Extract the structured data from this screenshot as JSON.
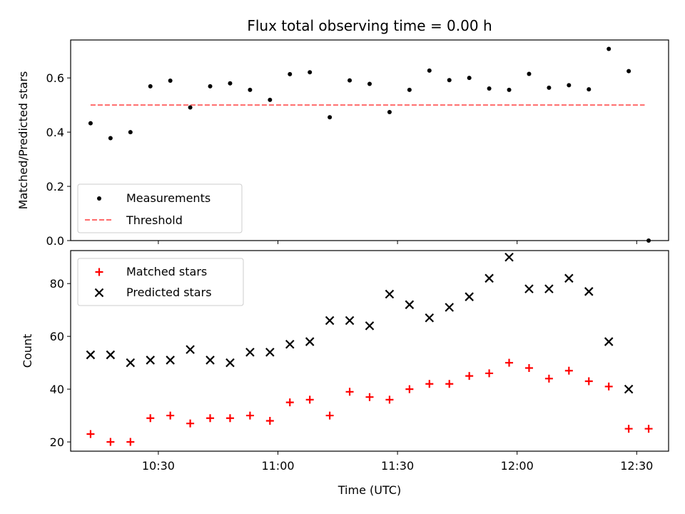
{
  "title": "Flux total observing time = 0.00 h",
  "colors": {
    "measurement": "#000000",
    "threshold": "#ff6b6b",
    "matched": "#ff0000",
    "predicted": "#000000"
  },
  "chart_data": [
    {
      "type": "scatter",
      "ylabel": "Matched/Predicted stars",
      "ylim": [
        0,
        0.74
      ],
      "yticks": [
        "0.0",
        "0.2",
        "0.4",
        "0.6"
      ],
      "xlim": [
        "10:08",
        "12:38"
      ],
      "legend": {
        "position": "lower-left",
        "entries": [
          "Measurements",
          "Threshold"
        ]
      },
      "series": [
        {
          "name": "Measurements",
          "x": [
            "10:13",
            "10:18",
            "10:23",
            "10:28",
            "10:33",
            "10:38",
            "10:43",
            "10:48",
            "10:53",
            "10:58",
            "11:03",
            "11:08",
            "11:13",
            "11:18",
            "11:23",
            "11:28",
            "11:33",
            "11:38",
            "11:43",
            "11:48",
            "11:53",
            "11:58",
            "12:03",
            "12:08",
            "12:13",
            "12:18",
            "12:23",
            "12:28",
            "12:33"
          ],
          "y": [
            0.433,
            0.378,
            0.4,
            0.569,
            0.59,
            0.491,
            0.569,
            0.58,
            0.556,
            0.519,
            0.614,
            0.621,
            0.455,
            0.591,
            0.578,
            0.474,
            0.556,
            0.627,
            0.592,
            0.6,
            0.561,
            0.556,
            0.615,
            0.564,
            0.573,
            0.558,
            0.707,
            0.625,
            0.0
          ]
        },
        {
          "name": "Threshold",
          "x": [
            "10:13",
            "12:32"
          ],
          "y": [
            0.5,
            0.5
          ]
        }
      ]
    },
    {
      "type": "scatter",
      "ylabel": "Count",
      "xlabel": "Time (UTC)",
      "ylim": [
        16.5,
        92.5
      ],
      "yticks": [
        "20",
        "40",
        "60",
        "80"
      ],
      "xticks": [
        "10:30",
        "11:00",
        "11:30",
        "12:00",
        "12:30"
      ],
      "xlim": [
        "10:08",
        "12:38"
      ],
      "legend": {
        "position": "upper-left",
        "entries": [
          "Matched stars",
          "Predicted stars"
        ]
      },
      "series": [
        {
          "name": "Matched stars",
          "x": [
            "10:13",
            "10:18",
            "10:23",
            "10:28",
            "10:33",
            "10:38",
            "10:43",
            "10:48",
            "10:53",
            "10:58",
            "11:03",
            "11:08",
            "11:13",
            "11:18",
            "11:23",
            "11:28",
            "11:33",
            "11:38",
            "11:43",
            "11:48",
            "11:53",
            "11:58",
            "12:03",
            "12:08",
            "12:13",
            "12:18",
            "12:23",
            "12:28",
            "12:33"
          ],
          "y": [
            23,
            20,
            20,
            29,
            30,
            27,
            29,
            29,
            30,
            28,
            35,
            36,
            30,
            39,
            37,
            36,
            40,
            42,
            42,
            45,
            46,
            50,
            48,
            44,
            47,
            43,
            41,
            25,
            25
          ]
        },
        {
          "name": "Predicted stars",
          "x": [
            "10:13",
            "10:18",
            "10:23",
            "10:28",
            "10:33",
            "10:38",
            "10:43",
            "10:48",
            "10:53",
            "10:58",
            "11:03",
            "11:08",
            "11:13",
            "11:18",
            "11:23",
            "11:28",
            "11:33",
            "11:38",
            "11:43",
            "11:48",
            "11:53",
            "11:58",
            "12:03",
            "12:08",
            "12:13",
            "12:18",
            "12:23",
            "12:28"
          ],
          "y": [
            53,
            53,
            50,
            51,
            51,
            55,
            51,
            50,
            54,
            54,
            57,
            58,
            66,
            66,
            64,
            76,
            72,
            67,
            71,
            75,
            82,
            90,
            78,
            78,
            82,
            77,
            58,
            40
          ]
        }
      ]
    }
  ]
}
